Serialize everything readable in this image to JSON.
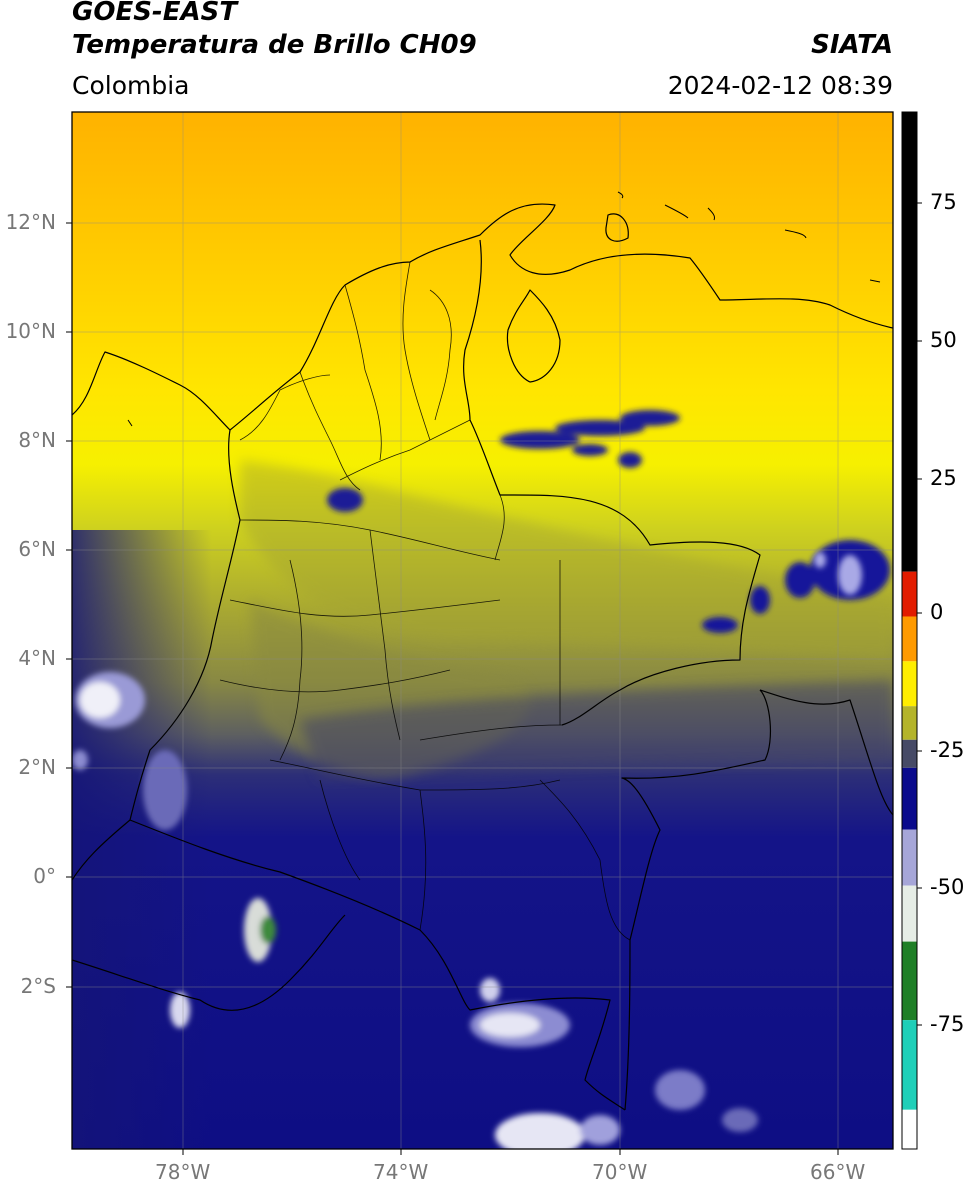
{
  "header": {
    "satellite": "GOES-EAST",
    "product": "Temperatura de Brillo CH09",
    "region": "Colombia",
    "agency": "SIATA",
    "datetime": "2024-02-12 08:39"
  },
  "axes": {
    "lat_labels": [
      "12°N",
      "10°N",
      "8°N",
      "6°N",
      "4°N",
      "2°N",
      "0°",
      "2°S"
    ],
    "lon_labels": [
      "78°W",
      "74°W",
      "70°W",
      "66°W"
    ],
    "grid": true
  },
  "colorbar": {
    "ticks": [
      "75",
      "50",
      "25",
      "0",
      "-25",
      "-50",
      "-75"
    ],
    "range": [
      -95,
      90
    ],
    "segments": [
      {
        "from": 8,
        "to": 90,
        "color": "#000000"
      },
      {
        "from": 0,
        "to": 8,
        "color": "#e21c00"
      },
      {
        "from": -8,
        "to": 0,
        "color": "#ff9a00"
      },
      {
        "from": -16,
        "to": -8,
        "color": "#ffee00"
      },
      {
        "from": -22,
        "to": -16,
        "color": "#b4b42a"
      },
      {
        "from": -27,
        "to": -22,
        "color": "#464a66"
      },
      {
        "from": -38,
        "to": -27,
        "color": "#0a0a8c"
      },
      {
        "from": -48,
        "to": -38,
        "color": "#a6a6d8"
      },
      {
        "from": -58,
        "to": -48,
        "color": "#e6ede6"
      },
      {
        "from": -72,
        "to": -58,
        "color": "#1f7f26"
      },
      {
        "from": -88,
        "to": -72,
        "color": "#1fcfb8"
      },
      {
        "from": -95,
        "to": -88,
        "color": "#ffffff"
      }
    ]
  }
}
